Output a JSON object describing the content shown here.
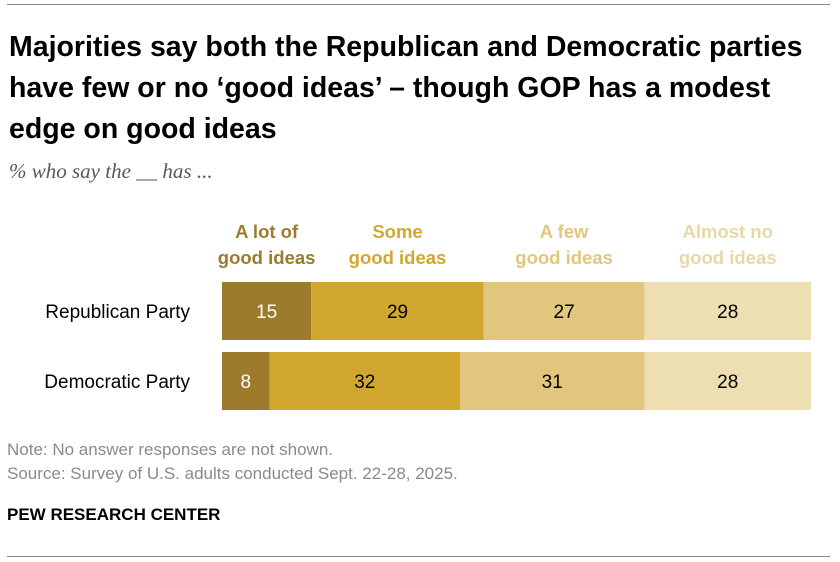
{
  "title": "Majorities say both the Republican and Democratic parties have few or no ‘good ideas’ – though GOP has a modest edge on good ideas",
  "subtitle": "% who say the __ has ...",
  "note": "Note: No answer responses are not shown.",
  "source": "Source: Survey of U.S. adults conducted Sept. 22-28, 2025.",
  "brand": "PEW RESEARCH CENTER",
  "chart_data": {
    "type": "bar",
    "orientation": "horizontal",
    "stacked": true,
    "categories": [
      "Republican Party",
      "Democratic Party"
    ],
    "series": [
      {
        "name": "A lot of good ideas",
        "legend_lines": [
          "A lot of",
          "good ideas"
        ],
        "values": [
          15,
          8
        ],
        "color": "#9c7b2c",
        "label_color": "#ffffff"
      },
      {
        "name": "Some good ideas",
        "legend_lines": [
          "Some",
          "good ideas"
        ],
        "values": [
          29,
          32
        ],
        "color": "#d2a730",
        "label_color": "#000000"
      },
      {
        "name": "A few good ideas",
        "legend_lines": [
          "A few",
          "good ideas"
        ],
        "values": [
          27,
          31
        ],
        "color": "#e2c67e",
        "label_color": "#000000"
      },
      {
        "name": "Almost no good ideas",
        "legend_lines": [
          "Almost no",
          "good ideas"
        ],
        "values": [
          28,
          28
        ],
        "color": "#eedfb3",
        "label_color": "#000000"
      }
    ],
    "legend_colors": [
      "#9c7b2c",
      "#d2a730",
      "#e2c67e",
      "#e8d8a8"
    ],
    "legend_placement": "top",
    "grid": false,
    "xlim": [
      0,
      99
    ]
  }
}
